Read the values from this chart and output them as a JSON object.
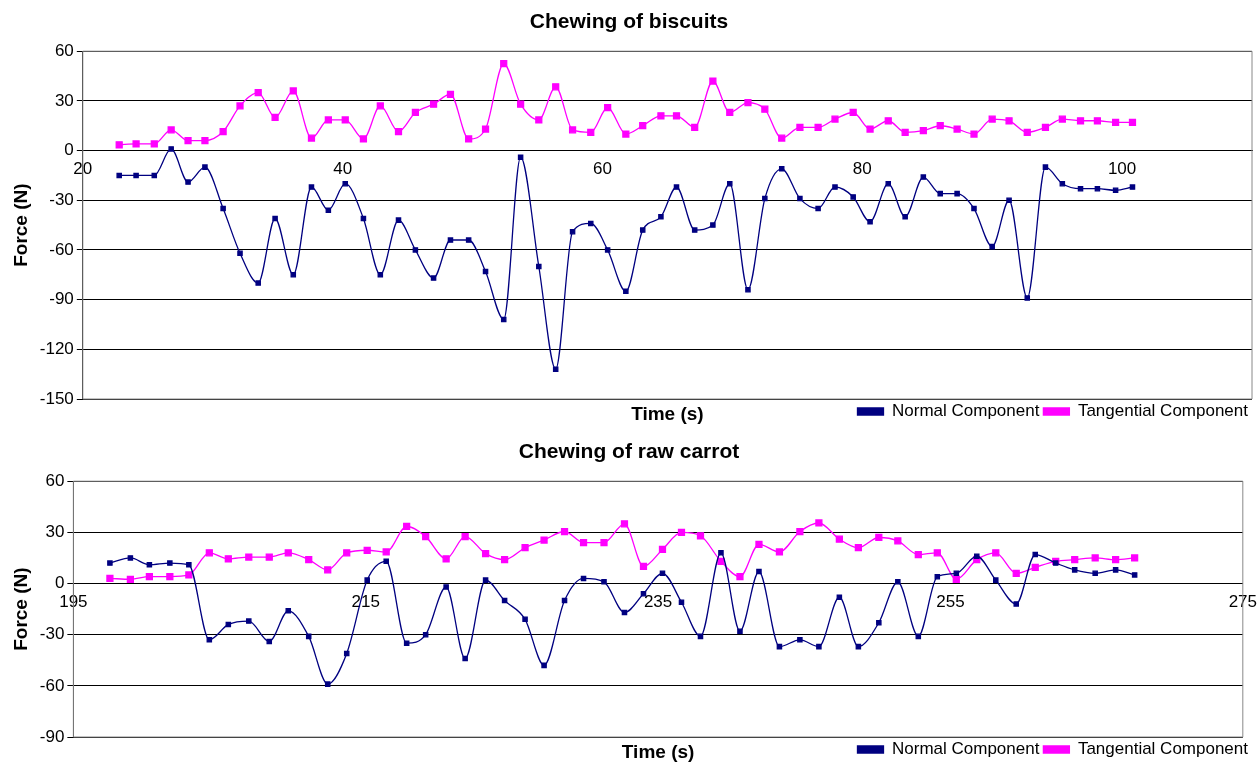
{
  "chart_data": [
    {
      "type": "line",
      "title": "Chewing of biscuits",
      "xlabel": "Time (s)",
      "ylabel": "Force (N)",
      "xlim": [
        20,
        110
      ],
      "xticks": [
        20,
        40,
        60,
        80,
        100
      ],
      "ylim": [
        -150,
        60
      ],
      "yticks": [
        -150,
        -120,
        -90,
        -60,
        -30,
        0,
        30,
        60
      ],
      "grid": "y",
      "legend": "bottom right",
      "marker": "square",
      "x": [
        22.8,
        24.1,
        25.5,
        26.8,
        28.1,
        29.4,
        30.8,
        32.1,
        33.5,
        34.8,
        36.2,
        37.6,
        38.9,
        40.2,
        41.6,
        42.9,
        44.3,
        45.6,
        47.0,
        48.3,
        49.7,
        51.0,
        52.4,
        53.7,
        55.1,
        56.4,
        57.7,
        59.1,
        60.4,
        61.8,
        63.1,
        64.5,
        65.7,
        67.1,
        68.5,
        69.8,
        71.2,
        72.5,
        73.8,
        75.2,
        76.6,
        77.9,
        79.3,
        80.6,
        82.0,
        83.3,
        84.7,
        86.0,
        87.3,
        88.6,
        90.0,
        91.3,
        92.7,
        94.1,
        95.4,
        96.8,
        98.1,
        99.5,
        100.8
      ],
      "series": [
        {
          "name": "Normal Component",
          "color": "#000080",
          "values": [
            -15,
            -15,
            -15,
            1,
            -19,
            -10,
            -35,
            -62,
            -80,
            -41,
            -75,
            -22,
            -36,
            -20,
            -41,
            -75,
            -42,
            -60,
            -77,
            -54,
            -54,
            -73,
            -102,
            -4,
            -70,
            -132,
            -49,
            -44,
            -60,
            -85,
            -48,
            -40,
            -22,
            -48,
            -45,
            -20,
            -84,
            -29,
            -11,
            -29,
            -35,
            -22,
            -28,
            -43,
            -20,
            -40,
            -16,
            -26,
            -26,
            -35,
            -58,
            -30,
            -89,
            -10,
            -20,
            -23,
            -23,
            -24,
            -22
          ]
        },
        {
          "name": "Tangential Component",
          "color": "#ff00ff",
          "values": [
            3.5,
            4,
            4,
            12.5,
            6,
            6,
            11.5,
            27,
            35,
            20,
            36,
            7.5,
            18.5,
            18.5,
            7,
            27,
            11.5,
            23,
            28,
            34,
            7,
            13,
            52.5,
            28,
            18.5,
            38.5,
            12.5,
            11,
            26,
            10,
            15,
            21,
            21,
            14,
            42,
            23,
            29,
            25,
            7.5,
            14,
            14,
            19,
            23,
            13,
            18,
            11,
            12,
            15,
            13,
            10,
            19,
            18,
            11,
            14,
            19,
            18,
            18,
            17,
            17
          ]
        }
      ]
    },
    {
      "type": "line",
      "title": "Chewing of raw carrot",
      "xlabel": "Time (s)",
      "ylabel": "Force (N)",
      "xlim": [
        195,
        275
      ],
      "xticks": [
        195,
        215,
        235,
        255,
        275
      ],
      "ylim": [
        -90,
        60
      ],
      "yticks": [
        -90,
        -60,
        -30,
        0,
        30,
        60
      ],
      "grid": "y",
      "legend": "bottom right",
      "marker": "square",
      "x": [
        197.5,
        198.9,
        200.2,
        201.6,
        202.9,
        204.3,
        205.6,
        207.0,
        208.4,
        209.7,
        211.1,
        212.4,
        213.7,
        215.1,
        216.4,
        217.8,
        219.1,
        220.5,
        221.8,
        223.2,
        224.5,
        225.9,
        227.2,
        228.6,
        229.9,
        231.3,
        232.7,
        234.0,
        235.3,
        236.6,
        237.9,
        239.3,
        240.6,
        241.9,
        243.3,
        244.7,
        246.0,
        247.4,
        248.7,
        250.1,
        251.4,
        252.8,
        254.1,
        255.4,
        256.8,
        258.1,
        259.5,
        260.8,
        262.2,
        263.5,
        264.9,
        266.3,
        267.6
      ],
      "series": [
        {
          "name": "Normal Component",
          "color": "#000080",
          "values": [
            12,
            15,
            11,
            12,
            11,
            -33,
            -24,
            -22,
            -34,
            -16,
            -31,
            -59,
            -41,
            2,
            13,
            -35,
            -30,
            -2,
            -44,
            2,
            -10,
            -21,
            -48,
            -10,
            3,
            1,
            -17,
            -6,
            6,
            -11,
            -31,
            18,
            -28,
            7,
            -37,
            -33,
            -37,
            -8,
            -37,
            -23,
            1,
            -31,
            4,
            6,
            16,
            2,
            -12,
            17,
            12,
            8,
            6,
            8,
            5
          ]
        },
        {
          "name": "Tangential Component",
          "color": "#ff00ff",
          "values": [
            3,
            2.5,
            4,
            4,
            5,
            18,
            14.5,
            15.5,
            15.5,
            18,
            14,
            8,
            18,
            19.5,
            18.5,
            33.5,
            27.5,
            14.5,
            27.5,
            17.5,
            14,
            21,
            25.5,
            30.5,
            24,
            24,
            35,
            10,
            20,
            30,
            28,
            13,
            4,
            23,
            18.5,
            30.5,
            35.5,
            26,
            21,
            27,
            25,
            17,
            18,
            2.5,
            14,
            18,
            6,
            9.5,
            13,
            14,
            15,
            14,
            15
          ]
        }
      ]
    }
  ]
}
